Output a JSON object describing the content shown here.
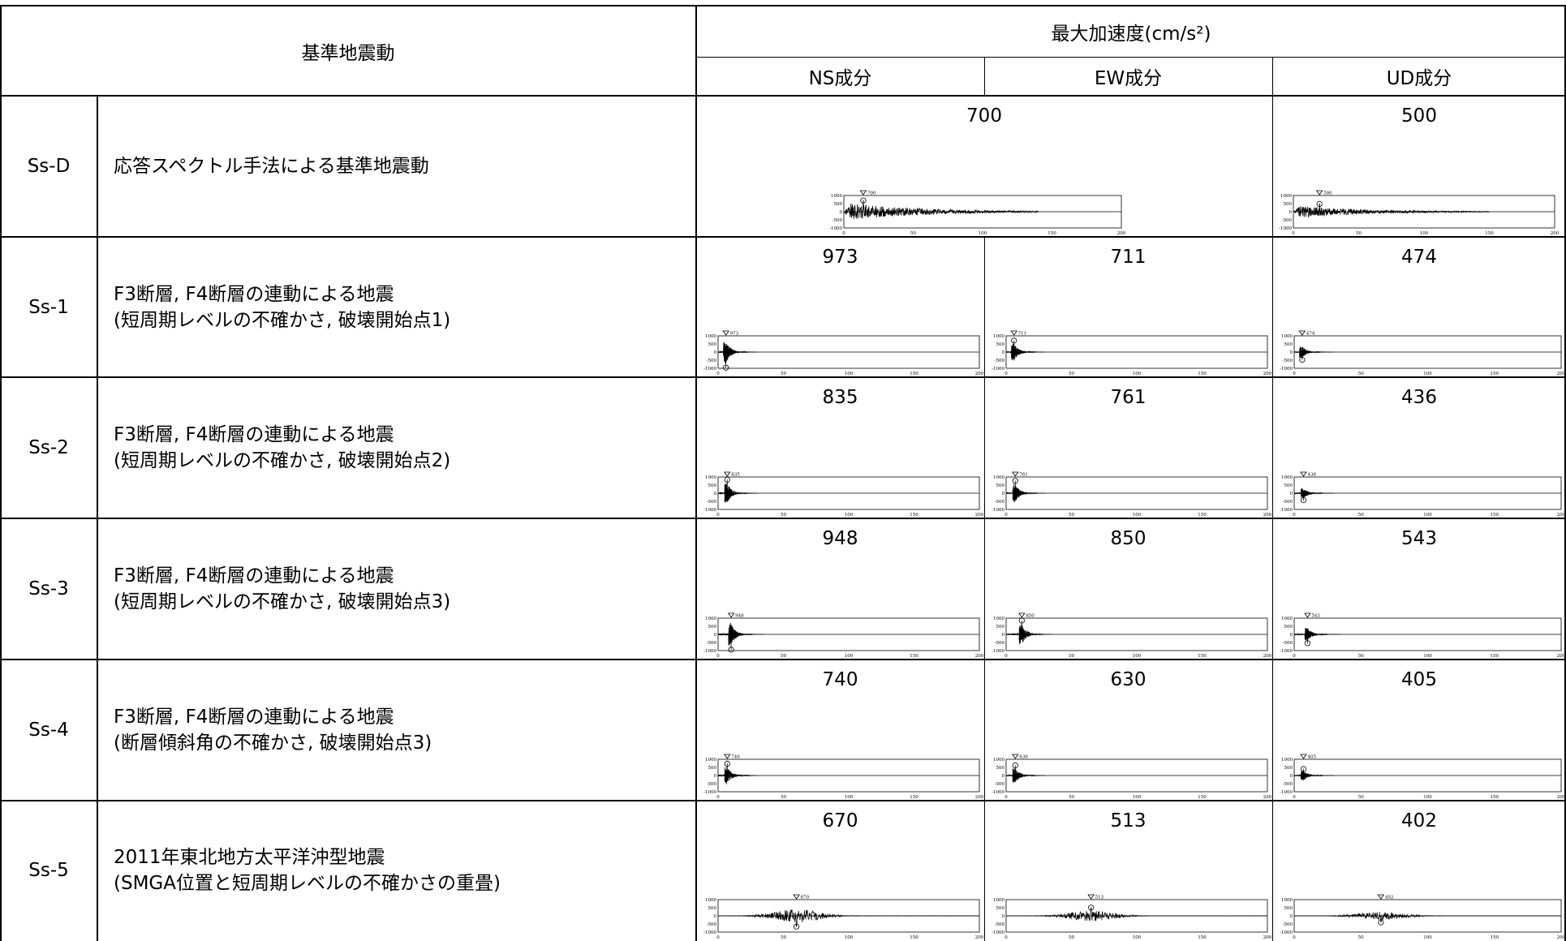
{
  "header": {
    "ground_motion_label": "基準地震動",
    "max_accel_label": "最大加速度(cm/s²)",
    "components": [
      "NS成分",
      "EW成分",
      "UD成分"
    ]
  },
  "axis": {
    "y_ticks": [
      "1000",
      "500",
      "0",
      "-500",
      "-1000"
    ],
    "x_ticks": [
      "0",
      "50",
      "100",
      "150",
      "200"
    ],
    "x_tick_values": [
      0,
      50,
      100,
      150,
      200
    ],
    "y_range": [
      -1000,
      1000
    ]
  },
  "rows": [
    {
      "id": "Ss-D",
      "description": "応答スペクトル手法による基準地震動",
      "merged_horizontal": true,
      "peaks": [
        {
          "value": "700",
          "peak_time": 14,
          "peak_acc": 690,
          "duration": 140,
          "kind": "long"
        },
        {
          "value": "500",
          "peak_time": 20,
          "peak_acc": 480,
          "duration": 150,
          "kind": "long"
        }
      ]
    },
    {
      "id": "Ss-1",
      "description": "F3断層, F4断層の連動による地震\n(短周期レベルの不確かさ, 破壊開始点1)",
      "peaks": [
        {
          "value": "973",
          "peak_time": 6,
          "peak_acc": -960,
          "duration": 30,
          "kind": "short"
        },
        {
          "value": "711",
          "peak_time": 6,
          "peak_acc": 710,
          "duration": 30,
          "kind": "short"
        },
        {
          "value": "474",
          "peak_time": 6,
          "peak_acc": -470,
          "duration": 30,
          "kind": "short"
        }
      ]
    },
    {
      "id": "Ss-2",
      "description": "F3断層, F4断層の連動による地震\n(短周期レベルの不確かさ, 破壊開始点2)",
      "peaks": [
        {
          "value": "835",
          "peak_time": 7,
          "peak_acc": 830,
          "duration": 30,
          "kind": "short"
        },
        {
          "value": "761",
          "peak_time": 7,
          "peak_acc": 760,
          "duration": 30,
          "kind": "short"
        },
        {
          "value": "436",
          "peak_time": 7,
          "peak_acc": -430,
          "duration": 30,
          "kind": "short"
        }
      ]
    },
    {
      "id": "Ss-3",
      "description": "F3断層, F4断層の連動による地震\n(短周期レベルの不確かさ, 破壊開始点3)",
      "peaks": [
        {
          "value": "948",
          "peak_time": 10,
          "peak_acc": -940,
          "duration": 35,
          "kind": "short"
        },
        {
          "value": "850",
          "peak_time": 12,
          "peak_acc": 850,
          "duration": 35,
          "kind": "short"
        },
        {
          "value": "543",
          "peak_time": 10,
          "peak_acc": -540,
          "duration": 35,
          "kind": "short"
        }
      ]
    },
    {
      "id": "Ss-4",
      "description": "F3断層, F4断層の連動による地震\n(断層傾斜角の不確かさ, 破壊開始点3)",
      "peaks": [
        {
          "value": "740",
          "peak_time": 7,
          "peak_acc": 730,
          "duration": 30,
          "kind": "short"
        },
        {
          "value": "630",
          "peak_time": 7,
          "peak_acc": 620,
          "duration": 30,
          "kind": "short"
        },
        {
          "value": "405",
          "peak_time": 7,
          "peak_acc": 400,
          "duration": 30,
          "kind": "short"
        }
      ]
    },
    {
      "id": "Ss-5",
      "description": "2011年東北地方太平洋沖型地震\n(SMGA位置と短周期レベルの不確かさの重畳)",
      "peaks": [
        {
          "value": "670",
          "peak_time": 60,
          "peak_acc": -660,
          "duration": 200,
          "kind": "center"
        },
        {
          "value": "513",
          "peak_time": 65,
          "peak_acc": 510,
          "duration": 200,
          "kind": "center"
        },
        {
          "value": "402",
          "peak_time": 65,
          "peak_acc": -400,
          "duration": 200,
          "kind": "center"
        }
      ]
    }
  ]
}
